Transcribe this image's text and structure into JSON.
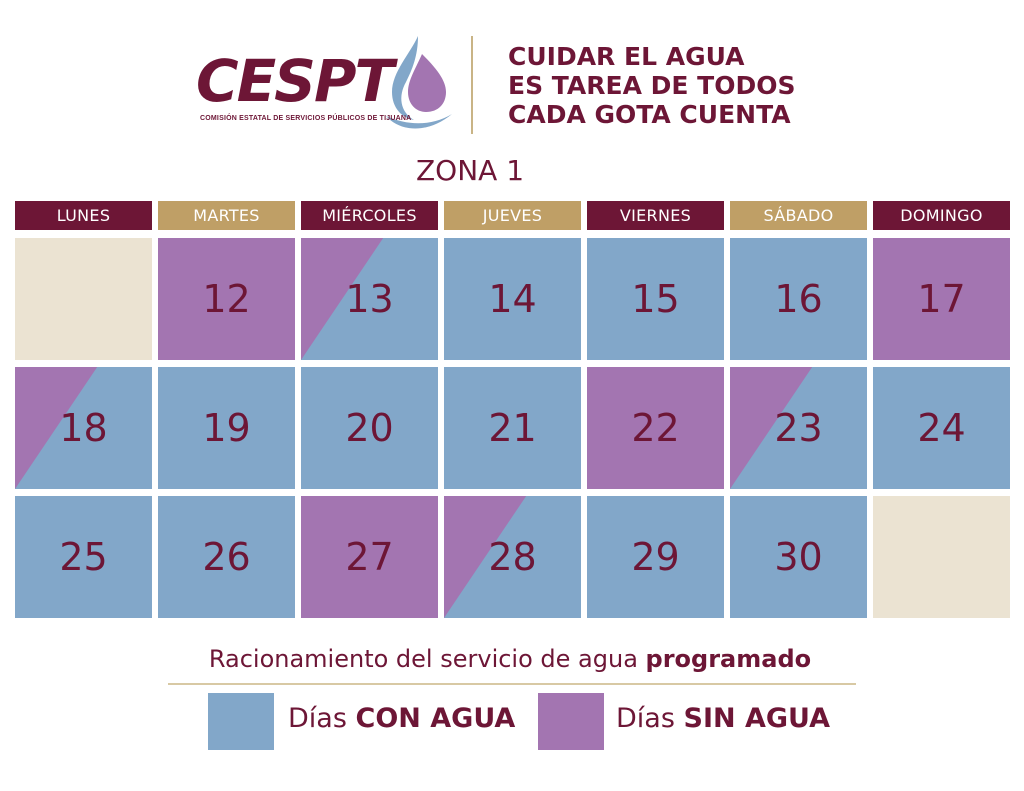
{
  "header": {
    "logo_text": "CESPT",
    "logo_subtitle": "COMISIÓN ESTATAL DE SERVICIOS PÚBLICOS DE TIJUANA",
    "slogan": [
      "CUIDAR EL AGUA",
      "ES TAREA DE TODOS",
      "CADA GOTA CUENTA"
    ]
  },
  "zone_title": "ZONA 1",
  "colors": {
    "maroon": "#6d1636",
    "gold": "#bf9f66",
    "blue": "#82a7c9",
    "purple": "#a375b1",
    "cream": "#ebe3d2"
  },
  "weekdays": [
    {
      "label": "LUNES",
      "color": "#6d1636"
    },
    {
      "label": "MARTES",
      "color": "#bf9f66"
    },
    {
      "label": "MIÉRCOLES",
      "color": "#6d1636"
    },
    {
      "label": "JUEVES",
      "color": "#bf9f66"
    },
    {
      "label": "VIERNES",
      "color": "#6d1636"
    },
    {
      "label": "SÁBADO",
      "color": "#bf9f66"
    },
    {
      "label": "DOMINGO",
      "color": "#6d1636"
    }
  ],
  "calendar": [
    [
      {
        "day": "",
        "status": "empty"
      },
      {
        "day": "12",
        "status": "sin_agua"
      },
      {
        "day": "13",
        "status": "partial"
      },
      {
        "day": "14",
        "status": "con_agua"
      },
      {
        "day": "15",
        "status": "con_agua"
      },
      {
        "day": "16",
        "status": "con_agua"
      },
      {
        "day": "17",
        "status": "sin_agua"
      }
    ],
    [
      {
        "day": "18",
        "status": "partial"
      },
      {
        "day": "19",
        "status": "con_agua"
      },
      {
        "day": "20",
        "status": "con_agua"
      },
      {
        "day": "21",
        "status": "con_agua"
      },
      {
        "day": "22",
        "status": "sin_agua"
      },
      {
        "day": "23",
        "status": "partial"
      },
      {
        "day": "24",
        "status": "con_agua"
      }
    ],
    [
      {
        "day": "25",
        "status": "con_agua"
      },
      {
        "day": "26",
        "status": "con_agua"
      },
      {
        "day": "27",
        "status": "sin_agua"
      },
      {
        "day": "28",
        "status": "partial"
      },
      {
        "day": "29",
        "status": "con_agua"
      },
      {
        "day": "30",
        "status": "con_agua"
      },
      {
        "day": "",
        "status": "empty"
      }
    ]
  ],
  "legend": {
    "title_prefix": "Racionamiento del servicio de agua ",
    "title_bold": "programado",
    "con_agua": {
      "prefix": "Días ",
      "bold": "CON AGUA"
    },
    "sin_agua": {
      "prefix": "Días ",
      "bold": "SIN AGUA"
    }
  }
}
